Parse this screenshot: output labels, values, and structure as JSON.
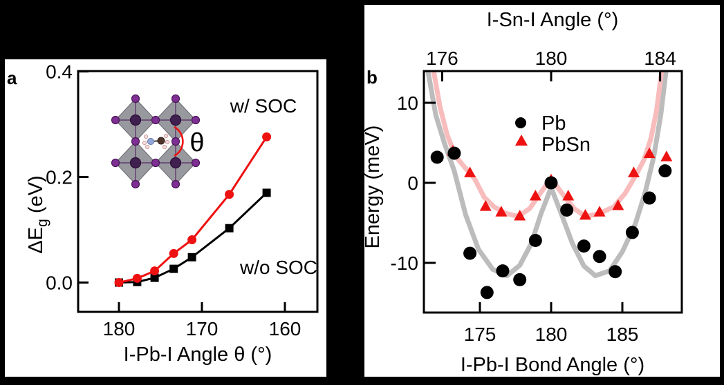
{
  "figure": {
    "background": "#000000",
    "panel_bg": "#ffffff",
    "panels": [
      {
        "label": "a"
      },
      {
        "label": "b"
      }
    ],
    "inset": {
      "description": "perovskite-octahedra-lattice-with-MA-cation",
      "colors": {
        "octahedron": "#8f9096",
        "octahedron_edge": "#6b6b71",
        "iodine": "#7d2f92",
        "iodine_edge": "#4a1558",
        "metal": "#40204e",
        "metal_edge": "#2a0e36",
        "bond": "#5f3a6e",
        "nitrogen": "#93a7d8",
        "carbon": "#4e342b",
        "hydrogen": "#f3e0e0",
        "hydrogen_edge": "#cf9a9a",
        "arc": "#ee1111"
      }
    },
    "colors": {
      "red": "#ee1111",
      "black": "#000000",
      "gray_fit": "#bcbcbc",
      "pink_fit": "#f8bcbc"
    }
  },
  "chart_data": [
    {
      "panel": "a",
      "type": "line",
      "title": "",
      "xlabel": "I-Pb-I Angle θ (°)",
      "ylabel_parts": {
        "prefix": "ΔE",
        "sub": "g",
        "suffix": " (eV)"
      },
      "x_ticks": [
        "180",
        "170",
        "160"
      ],
      "y_ticks": [
        "0.4",
        "0.2",
        "0.0"
      ],
      "xlim": [
        185.2,
        156.1
      ],
      "x_axis_reversed": true,
      "ylim": [
        -0.056,
        0.401
      ],
      "grid": false,
      "x_values": [
        180,
        177.8,
        175.7,
        173.4,
        171.2,
        166.7,
        162.2
      ],
      "series": [
        {
          "name": "w/o SOC",
          "marker": "square",
          "color": "#000000",
          "values": [
            0.0,
            0.001,
            0.009,
            0.026,
            0.048,
            0.103,
            0.17
          ]
        },
        {
          "name": "w/ SOC",
          "marker": "circle",
          "color": "#ee1111",
          "values": [
            0.0,
            0.008,
            0.022,
            0.055,
            0.081,
            0.167,
            0.276
          ]
        }
      ],
      "annotations": {
        "with_soc": "w/ SOC",
        "without_soc": "w/o SOC",
        "theta": "θ"
      }
    },
    {
      "panel": "b",
      "type": "scatter",
      "title": "",
      "xlabel": "I-Pb-I Bond Angle (°)",
      "top_xlabel": "I-Sn-I Angle (°)",
      "ylabel": "Energy (meV)",
      "x_ticks": [
        175,
        180,
        185
      ],
      "top_x_ticks": [
        176,
        180,
        184
      ],
      "y_ticks": [
        10,
        0,
        -10
      ],
      "xlim": [
        171.0,
        189.2
      ],
      "top_xlim": [
        175.3,
        184.8
      ],
      "ylim": [
        -16.2,
        14.0
      ],
      "grid": false,
      "legend_position": "upper-center",
      "legend": [
        {
          "label": "Pb",
          "marker": "circle",
          "color": "#000000"
        },
        {
          "label": "PbSn",
          "marker": "triangle",
          "color": "#ee1111"
        }
      ],
      "series": [
        {
          "name": "Pb",
          "marker": "circle",
          "color": "#000000",
          "points": [
            [
              172.0,
              3.2
            ],
            [
              173.2,
              3.7
            ],
            [
              174.3,
              -8.8
            ],
            [
              175.5,
              -13.7
            ],
            [
              176.6,
              -11.0
            ],
            [
              177.8,
              -12.1
            ],
            [
              178.9,
              -7.2
            ],
            [
              180.0,
              0.0
            ],
            [
              181.1,
              -3.4
            ],
            [
              182.3,
              -7.9
            ],
            [
              183.4,
              -9.2
            ],
            [
              184.5,
              -11.1
            ],
            [
              185.7,
              -6.2
            ],
            [
              186.9,
              -1.9
            ],
            [
              188.0,
              1.5
            ]
          ]
        },
        {
          "name": "PbSn",
          "marker": "triangle",
          "color": "#ee1111",
          "points": [
            [
              172.0,
              3.3
            ],
            [
              173.1,
              4.0
            ],
            [
              174.3,
              1.3
            ],
            [
              175.4,
              -2.9
            ],
            [
              176.5,
              -3.6
            ],
            [
              177.8,
              -4.1
            ],
            [
              178.9,
              -1.6
            ],
            [
              180.0,
              0.4
            ],
            [
              181.2,
              -1.6
            ],
            [
              182.4,
              -4.0
            ],
            [
              183.4,
              -3.6
            ],
            [
              184.7,
              -2.8
            ],
            [
              185.8,
              1.3
            ],
            [
              186.9,
              3.7
            ],
            [
              188.1,
              3.3
            ]
          ]
        }
      ],
      "fit_curves": [
        {
          "name": "Pb fit",
          "color": "#bcbcbc",
          "points": [
            [
              171.3,
              14.5
            ],
            [
              171.9,
              8.5
            ],
            [
              172.5,
              5.0
            ],
            [
              173.2,
              1.5
            ],
            [
              174.0,
              -4.0
            ],
            [
              174.9,
              -8.3
            ],
            [
              175.9,
              -10.8
            ],
            [
              176.9,
              -11.6
            ],
            [
              177.8,
              -10.3
            ],
            [
              178.6,
              -7.6
            ],
            [
              179.3,
              -3.8
            ],
            [
              180.0,
              -0.6
            ],
            [
              180.7,
              -3.8
            ],
            [
              181.5,
              -7.6
            ],
            [
              182.3,
              -10.4
            ],
            [
              183.1,
              -11.6
            ],
            [
              184.1,
              -11.0
            ],
            [
              185.0,
              -8.6
            ],
            [
              185.9,
              -5.2
            ],
            [
              186.6,
              -1.2
            ],
            [
              187.2,
              3.2
            ],
            [
              187.7,
              8.5
            ],
            [
              188.1,
              14.5
            ]
          ]
        },
        {
          "name": "PbSn fit",
          "color": "#f8bcbc",
          "points": [
            [
              171.7,
              14.5
            ],
            [
              172.2,
              9.5
            ],
            [
              172.7,
              6.0
            ],
            [
              173.3,
              3.3
            ],
            [
              174.0,
              1.8
            ],
            [
              174.6,
              0.6
            ],
            [
              175.3,
              -1.8
            ],
            [
              176.0,
              -3.0
            ],
            [
              176.8,
              -3.8
            ],
            [
              177.7,
              -4.2
            ],
            [
              178.5,
              -3.2
            ],
            [
              179.2,
              -1.4
            ],
            [
              179.9,
              0.3
            ],
            [
              180.1,
              0.3
            ],
            [
              180.8,
              -1.4
            ],
            [
              181.6,
              -3.2
            ],
            [
              182.4,
              -4.2
            ],
            [
              183.3,
              -3.9
            ],
            [
              184.4,
              -3.0
            ],
            [
              185.2,
              -1.3
            ],
            [
              185.9,
              0.8
            ],
            [
              186.5,
              2.8
            ],
            [
              187.0,
              5.5
            ],
            [
              187.4,
              9.0
            ],
            [
              187.8,
              14.5
            ]
          ]
        }
      ]
    }
  ]
}
